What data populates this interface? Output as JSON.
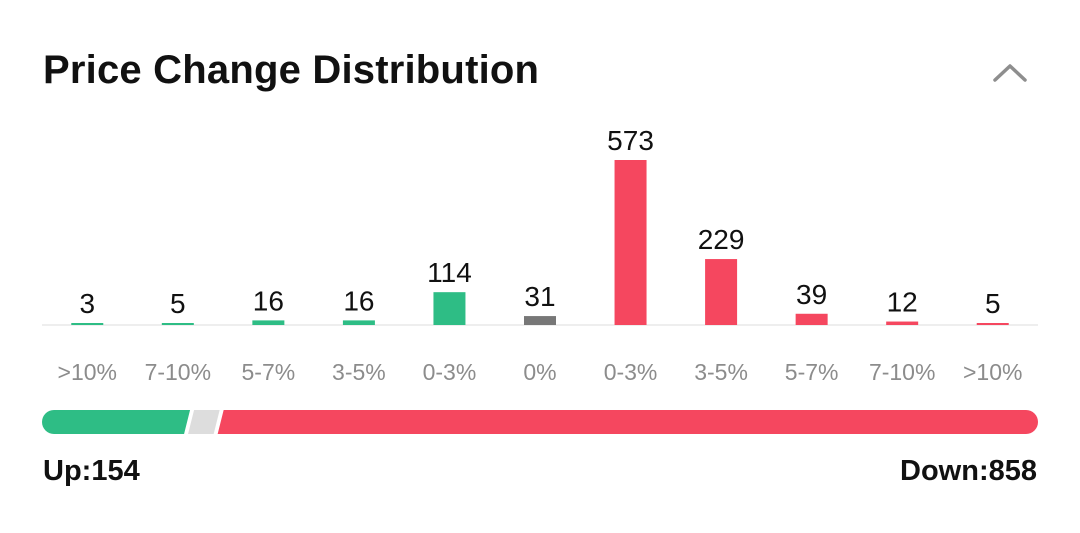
{
  "header": {
    "title": "Price Change Distribution",
    "collapse_icon": "chevron-up-icon"
  },
  "chart_data": {
    "type": "bar",
    "categories": [
      ">10%",
      "7-10%",
      "5-7%",
      "3-5%",
      "0-3%",
      "0%",
      "0-3%",
      "3-5%",
      "5-7%",
      "7-10%",
      ">10%"
    ],
    "values": [
      3,
      5,
      16,
      16,
      114,
      31,
      573,
      229,
      39,
      12,
      5
    ],
    "data_labels": [
      "3",
      "5",
      "16",
      "16",
      "114",
      "31",
      "573",
      "229",
      "39",
      "12",
      "5"
    ],
    "direction": [
      "up",
      "up",
      "up",
      "up",
      "up",
      "flat",
      "down",
      "down",
      "down",
      "down",
      "down"
    ],
    "ylim": [
      0,
      573
    ],
    "grid": false,
    "legend": "none",
    "colors": {
      "up": "#2ebd85",
      "flat": "#777777",
      "down": "#f5475f",
      "neutral_segment": "#dddddd",
      "baseline": "#eeeeee"
    }
  },
  "summary": {
    "up_label": "Up:154",
    "down_label": "Down:858",
    "up_count": 154,
    "flat_count": 31,
    "down_count": 858
  }
}
